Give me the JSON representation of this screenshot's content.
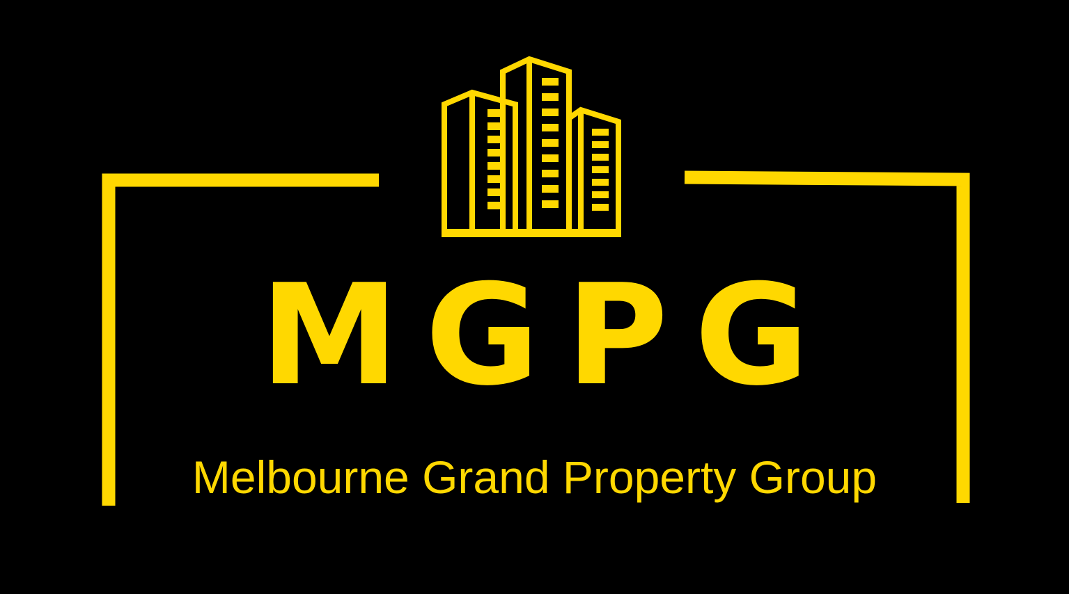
{
  "logo": {
    "monogram": "MGPG",
    "company_name": "Melbourne Grand Property Group",
    "icon": "buildings-icon",
    "colors": {
      "background": "#000000",
      "accent": "#FFD800"
    }
  }
}
